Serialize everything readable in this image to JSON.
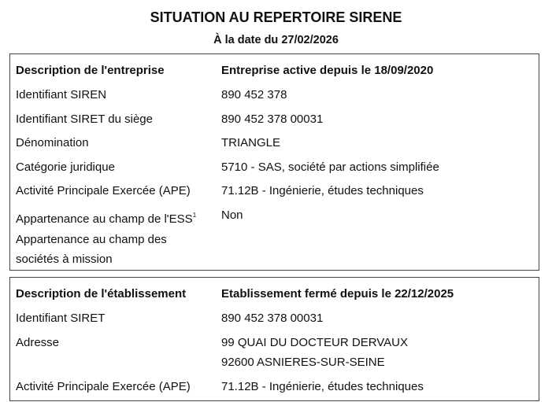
{
  "title": "SITUATION AU REPERTOIRE SIRENE",
  "subtitle": "À la date du 27/02/2026",
  "entreprise": {
    "header_label": "Description de l'entreprise",
    "header_value": "Entreprise active depuis le 18/09/2020",
    "rows": [
      {
        "label": "Identifiant SIREN",
        "value": "890 452 378"
      },
      {
        "label": "Identifiant SIRET du siège",
        "value": "890 452 378 00031"
      },
      {
        "label": "Dénomination",
        "value": "TRIANGLE"
      },
      {
        "label": "Catégorie juridique",
        "value": "5710 - SAS, société par actions simplifiée"
      },
      {
        "label": "Activité Principale Exercée (APE)",
        "value": "71.12B - Ingénierie, études techniques"
      },
      {
        "label": "Appartenance au champ de l'ESS",
        "footnote": "1",
        "value": "Non"
      },
      {
        "label_line1": "Appartenance au champ des",
        "label_line2": "sociétés à mission",
        "value": ""
      }
    ]
  },
  "etablissement": {
    "header_label": "Description de l'établissement",
    "header_value": "Etablissement fermé depuis le 22/12/2025",
    "siret_label": "Identifiant SIRET",
    "siret_value": "890 452 378 00031",
    "adresse_label": "Adresse",
    "adresse_line1": "99 QUAI DU DOCTEUR DERVAUX",
    "adresse_line2": "92600 ASNIERES-SUR-SEINE",
    "ape_label": "Activité Principale Exercée (APE)",
    "ape_value": "71.12B - Ingénierie, études techniques"
  }
}
